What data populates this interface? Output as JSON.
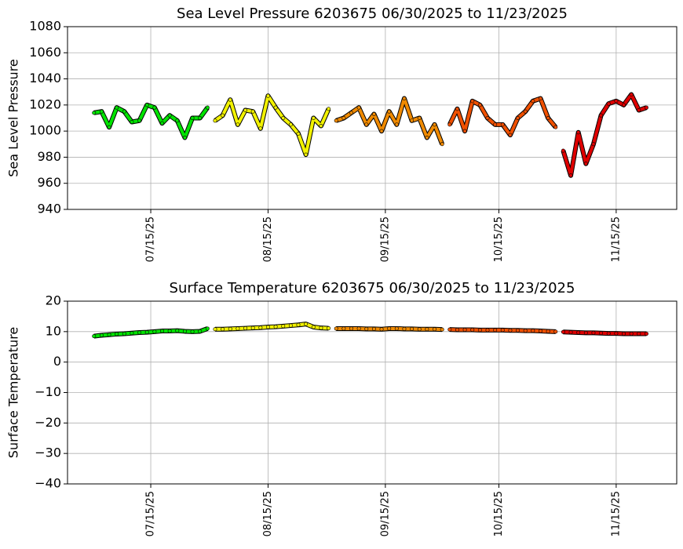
{
  "chart_data": [
    {
      "type": "line",
      "title": "Sea Level Pressure 6203675  06/30/2025 to 11/23/2025",
      "ylabel": "Sea Level Pressure",
      "xlim": [
        "2025-06-23",
        "2025-12-01"
      ],
      "xticks": [
        {
          "value": "2025-07-15",
          "label": "07/15/25"
        },
        {
          "value": "2025-08-15",
          "label": "08/15/25"
        },
        {
          "value": "2025-09-15",
          "label": "09/15/25"
        },
        {
          "value": "2025-10-15",
          "label": "10/15/25"
        },
        {
          "value": "2025-11-15",
          "label": "11/15/25"
        }
      ],
      "ylim": [
        940,
        1080
      ],
      "yticks": [
        940,
        960,
        980,
        1000,
        1020,
        1040,
        1060,
        1080
      ],
      "grid": true,
      "series": [
        {
          "color": "#00e400",
          "x": [
            "2025-06-30",
            "2025-07-02",
            "2025-07-04",
            "2025-07-06",
            "2025-07-08",
            "2025-07-10",
            "2025-07-12",
            "2025-07-14",
            "2025-07-16",
            "2025-07-18",
            "2025-07-20",
            "2025-07-22",
            "2025-07-24",
            "2025-07-26",
            "2025-07-28",
            "2025-07-30"
          ],
          "values": [
            1014,
            1015,
            1003,
            1018,
            1015,
            1007,
            1008,
            1020,
            1018,
            1006,
            1012,
            1008,
            995,
            1010,
            1010,
            1018
          ]
        },
        {
          "color": "#f2f200",
          "x": [
            "2025-08-01",
            "2025-08-03",
            "2025-08-05",
            "2025-08-07",
            "2025-08-09",
            "2025-08-11",
            "2025-08-13",
            "2025-08-15",
            "2025-08-17",
            "2025-08-19",
            "2025-08-21",
            "2025-08-23",
            "2025-08-25",
            "2025-08-27",
            "2025-08-29",
            "2025-08-31"
          ],
          "values": [
            1008,
            1012,
            1024,
            1005,
            1016,
            1015,
            1002,
            1027,
            1018,
            1010,
            1005,
            998,
            982,
            1010,
            1004,
            1017
          ]
        },
        {
          "color": "#f08a00",
          "x": [
            "2025-09-02",
            "2025-09-04",
            "2025-09-06",
            "2025-09-08",
            "2025-09-10",
            "2025-09-12",
            "2025-09-14",
            "2025-09-16",
            "2025-09-18",
            "2025-09-20",
            "2025-09-22",
            "2025-09-24",
            "2025-09-26",
            "2025-09-28",
            "2025-09-30"
          ],
          "values": [
            1008,
            1010,
            1014,
            1018,
            1005,
            1013,
            1000,
            1015,
            1005,
            1025,
            1008,
            1010,
            995,
            1005,
            990
          ]
        },
        {
          "color": "#f05000",
          "x": [
            "2025-10-02",
            "2025-10-04",
            "2025-10-06",
            "2025-10-08",
            "2025-10-10",
            "2025-10-12",
            "2025-10-14",
            "2025-10-16",
            "2025-10-18",
            "2025-10-20",
            "2025-10-22",
            "2025-10-24",
            "2025-10-26",
            "2025-10-28",
            "2025-10-30"
          ],
          "values": [
            1005,
            1017,
            1000,
            1023,
            1020,
            1010,
            1005,
            1005,
            997,
            1010,
            1015,
            1023,
            1025,
            1010,
            1003
          ]
        },
        {
          "color": "#e00000",
          "x": [
            "2025-11-01",
            "2025-11-03",
            "2025-11-05",
            "2025-11-07",
            "2025-11-09",
            "2025-11-11",
            "2025-11-13",
            "2025-11-15",
            "2025-11-17",
            "2025-11-19",
            "2025-11-21",
            "2025-11-23"
          ],
          "values": [
            985,
            966,
            999,
            975,
            990,
            1012,
            1021,
            1023,
            1020,
            1028,
            1016,
            1018
          ]
        }
      ]
    },
    {
      "type": "line",
      "title": "Surface Temperature 6203675  06/30/2025 to 11/23/2025",
      "ylabel": "Surface Temperature",
      "xlim": [
        "2025-06-23",
        "2025-12-01"
      ],
      "xticks": [
        {
          "value": "2025-07-15",
          "label": "07/15/25"
        },
        {
          "value": "2025-08-15",
          "label": "08/15/25"
        },
        {
          "value": "2025-09-15",
          "label": "09/15/25"
        },
        {
          "value": "2025-10-15",
          "label": "10/15/25"
        },
        {
          "value": "2025-11-15",
          "label": "11/15/25"
        }
      ],
      "ylim": [
        -40,
        20
      ],
      "yticks": [
        {
          "value": -40,
          "label": "−40"
        },
        {
          "value": -30,
          "label": "−30"
        },
        {
          "value": -20,
          "label": "−20"
        },
        {
          "value": -10,
          "label": "−10"
        },
        0,
        10,
        20
      ],
      "grid": true,
      "series": [
        {
          "color": "#00e400",
          "x": [
            "2025-06-30",
            "2025-07-02",
            "2025-07-04",
            "2025-07-06",
            "2025-07-08",
            "2025-07-10",
            "2025-07-12",
            "2025-07-14",
            "2025-07-16",
            "2025-07-18",
            "2025-07-20",
            "2025-07-22",
            "2025-07-24",
            "2025-07-26",
            "2025-07-28",
            "2025-07-30"
          ],
          "values": [
            8.5,
            8.8,
            9,
            9.2,
            9.3,
            9.5,
            9.7,
            9.8,
            10,
            10.2,
            10.2,
            10.3,
            10.1,
            10,
            10.1,
            11
          ]
        },
        {
          "color": "#f2f200",
          "x": [
            "2025-08-01",
            "2025-08-03",
            "2025-08-05",
            "2025-08-07",
            "2025-08-09",
            "2025-08-11",
            "2025-08-13",
            "2025-08-15",
            "2025-08-17",
            "2025-08-19",
            "2025-08-21",
            "2025-08-23",
            "2025-08-25",
            "2025-08-27",
            "2025-08-29",
            "2025-08-31"
          ],
          "values": [
            10.8,
            10.8,
            10.9,
            11,
            11.1,
            11.2,
            11.3,
            11.5,
            11.6,
            11.8,
            12,
            12.2,
            12.5,
            11.5,
            11.2,
            11.1
          ]
        },
        {
          "color": "#f08a00",
          "x": [
            "2025-09-02",
            "2025-09-04",
            "2025-09-06",
            "2025-09-08",
            "2025-09-10",
            "2025-09-12",
            "2025-09-14",
            "2025-09-16",
            "2025-09-18",
            "2025-09-20",
            "2025-09-22",
            "2025-09-24",
            "2025-09-26",
            "2025-09-28",
            "2025-09-30"
          ],
          "values": [
            11,
            11,
            11,
            11,
            10.9,
            10.9,
            10.8,
            11,
            11,
            10.9,
            10.9,
            10.8,
            10.8,
            10.8,
            10.7
          ]
        },
        {
          "color": "#f05000",
          "x": [
            "2025-10-02",
            "2025-10-04",
            "2025-10-06",
            "2025-10-08",
            "2025-10-10",
            "2025-10-12",
            "2025-10-14",
            "2025-10-16",
            "2025-10-18",
            "2025-10-20",
            "2025-10-22",
            "2025-10-24",
            "2025-10-26",
            "2025-10-28",
            "2025-10-30"
          ],
          "values": [
            10.7,
            10.6,
            10.6,
            10.6,
            10.5,
            10.5,
            10.5,
            10.5,
            10.4,
            10.4,
            10.3,
            10.3,
            10.2,
            10.1,
            10
          ]
        },
        {
          "color": "#e00000",
          "x": [
            "2025-11-01",
            "2025-11-03",
            "2025-11-05",
            "2025-11-07",
            "2025-11-09",
            "2025-11-11",
            "2025-11-13",
            "2025-11-15",
            "2025-11-17",
            "2025-11-19",
            "2025-11-21",
            "2025-11-23"
          ],
          "values": [
            9.9,
            9.8,
            9.7,
            9.6,
            9.6,
            9.5,
            9.4,
            9.4,
            9.3,
            9.3,
            9.3,
            9.3
          ]
        }
      ]
    }
  ]
}
